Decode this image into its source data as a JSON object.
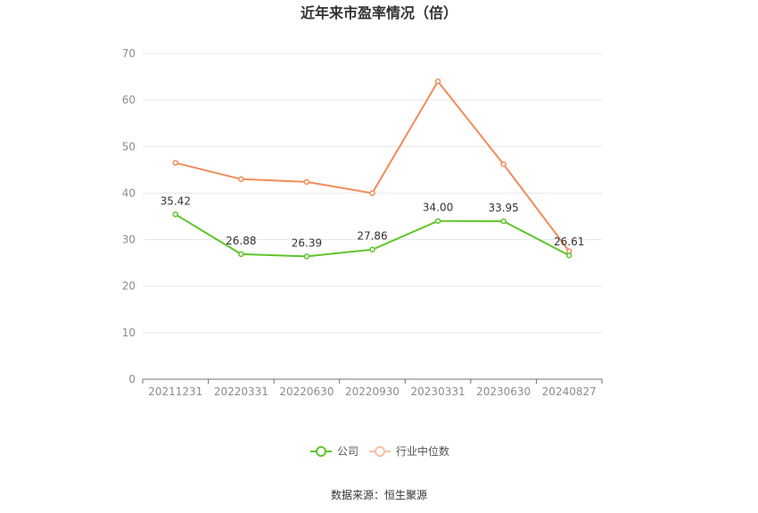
{
  "chart_data": {
    "type": "line",
    "title": "近年来市盈率情况（倍）",
    "categories": [
      "20211231",
      "20220331",
      "20220630",
      "20220930",
      "20230331",
      "20230630",
      "20240827"
    ],
    "ylim": [
      0,
      70
    ],
    "yticks": [
      "0",
      "10",
      "20",
      "30",
      "40",
      "50",
      "60",
      "70"
    ],
    "grid": true,
    "legend_position": "bottom-center",
    "series": [
      {
        "name": "公司",
        "color": "#5ec52a",
        "values": [
          35.42,
          26.88,
          26.39,
          27.86,
          34.0,
          33.95,
          26.61
        ],
        "labels": [
          "35.42",
          "26.88",
          "26.39",
          "27.86",
          "34.00",
          "33.95",
          "26.61"
        ]
      },
      {
        "name": "行业中位数",
        "color": "#f08c5a",
        "values": [
          46.5,
          43.0,
          42.4,
          40.0,
          64.0,
          46.2,
          27.5
        ]
      }
    ],
    "source": "数据来源：恒生聚源"
  }
}
